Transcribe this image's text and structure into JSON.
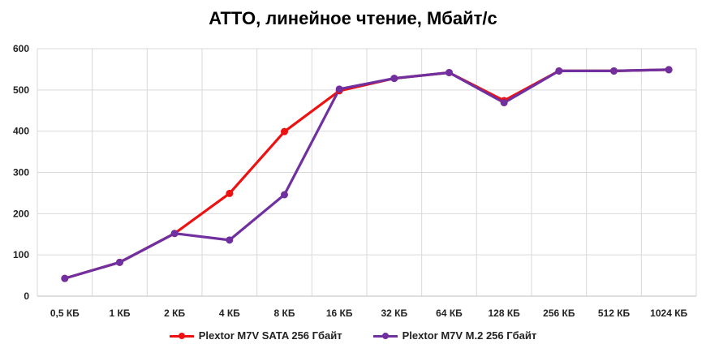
{
  "chart_data": {
    "type": "line",
    "title": "ATTO, линейное чтение, Мбайт/с",
    "categories": [
      "0,5 КБ",
      "1 КБ",
      "2 КБ",
      "4 КБ",
      "8 КБ",
      "16 КБ",
      "32 КБ",
      "64 КБ",
      "128 КБ",
      "256 КБ",
      "512 КБ",
      "1024 КБ"
    ],
    "series": [
      {
        "name": "Plextor M7V SATA 256 Гбайт",
        "color": "#ee1111",
        "values": [
          43,
          82,
          152,
          249,
          399,
          498,
          528,
          542,
          474,
          546,
          546,
          549
        ]
      },
      {
        "name": "Plextor M7V M.2 256 Гбайт",
        "color": "#7030a0",
        "values": [
          43,
          82,
          152,
          136,
          246,
          502,
          528,
          542,
          469,
          546,
          546,
          549
        ]
      }
    ],
    "ylim": [
      0,
      600
    ],
    "yticks": [
      0,
      100,
      200,
      300,
      400,
      500,
      600
    ],
    "grid": true,
    "legend_position": "bottom"
  }
}
